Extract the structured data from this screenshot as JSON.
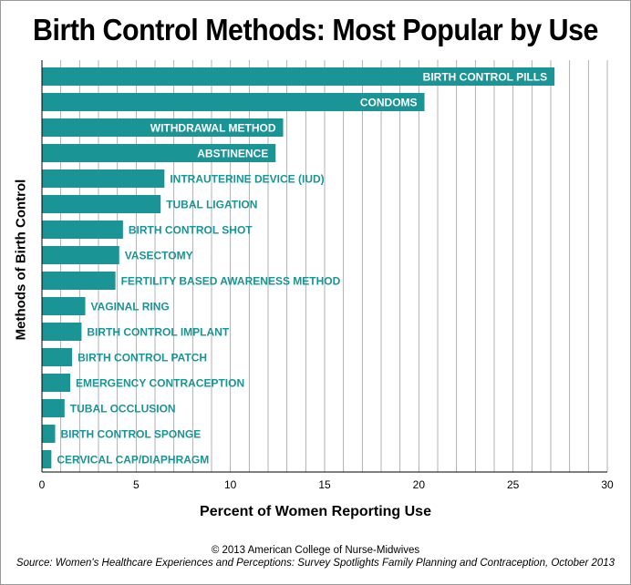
{
  "chart_data": {
    "type": "bar",
    "orientation": "horizontal",
    "title": "Birth Control Methods: Most Popular by Use",
    "xlabel": "Percent of Women Reporting Use",
    "ylabel": "Methods of Birth Control",
    "xlim": [
      0,
      30
    ],
    "xticks": [
      0,
      5,
      10,
      15,
      20,
      25,
      30
    ],
    "grid": "vertical",
    "bar_color": "#1a9494",
    "label_color": "#1a9494",
    "inside_label_color": "#ffffff",
    "categories": [
      "BIRTH CONTROL PILLS",
      "CONDOMS",
      "WITHDRAWAL METHOD",
      "ABSTINENCE",
      "INTRAUTERINE DEVICE (IUD)",
      "TUBAL LIGATION",
      "BIRTH CONTROL SHOT",
      "VASECTOMY",
      "FERTILITY BASED AWARENESS METHOD",
      "VAGINAL RING",
      "BIRTH CONTROL IMPLANT",
      "BIRTH CONTROL PATCH",
      "EMERGENCY CONTRACEPTION",
      "TUBAL OCCLUSION",
      "BIRTH CONTROL SPONGE",
      "CERVICAL CAP/DIAPHRAGM"
    ],
    "values": [
      27.2,
      20.3,
      12.8,
      12.4,
      6.5,
      6.3,
      4.3,
      4.1,
      3.9,
      2.3,
      2.1,
      1.6,
      1.5,
      1.2,
      0.7,
      0.5
    ],
    "label_inside": [
      true,
      true,
      true,
      true,
      false,
      false,
      false,
      false,
      false,
      false,
      false,
      false,
      false,
      false,
      false,
      false
    ]
  },
  "footer": {
    "copyright": "© 2013 American College of Nurse-Midwives",
    "source": "Source: Women's Healthcare Experiences and Perceptions: Survey Spotlights Family Planning and Contraception, October 2013"
  }
}
